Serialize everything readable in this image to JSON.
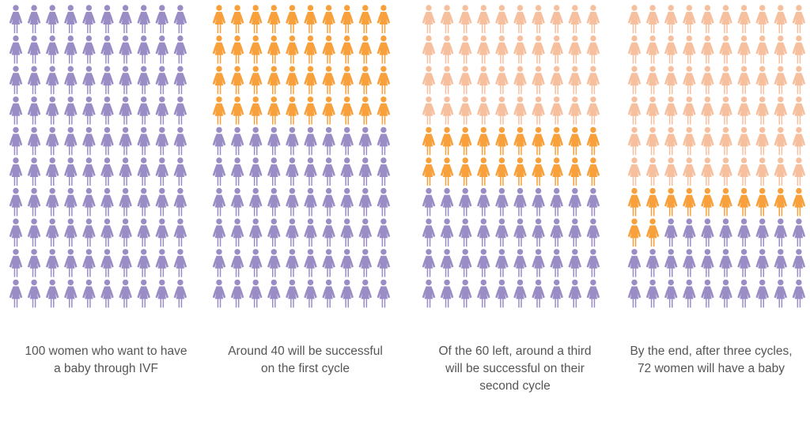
{
  "colors": {
    "base": "#9a8dc6",
    "previous_success": "#f6c09f",
    "new_success": "#f7a03c"
  },
  "icon": "woman-icon",
  "chart_data": {
    "type": "pictogram",
    "grid": {
      "columns": 10,
      "rows": 10
    },
    "panels": [
      {
        "base": 100,
        "previous_success": 0,
        "new_success": 0,
        "caption": "100 women who want to have a baby through IVF"
      },
      {
        "base": 60,
        "previous_success": 0,
        "new_success": 40,
        "caption": "Around 40 will be successful on the first cycle"
      },
      {
        "base": 40,
        "previous_success": 40,
        "new_success": 20,
        "caption": "Of the 60 left, around a third will be successful on their second cycle"
      },
      {
        "base": 28,
        "previous_success": 60,
        "new_success": 12,
        "caption": "By the end, after three cycles, 72 women will have a baby"
      }
    ]
  }
}
